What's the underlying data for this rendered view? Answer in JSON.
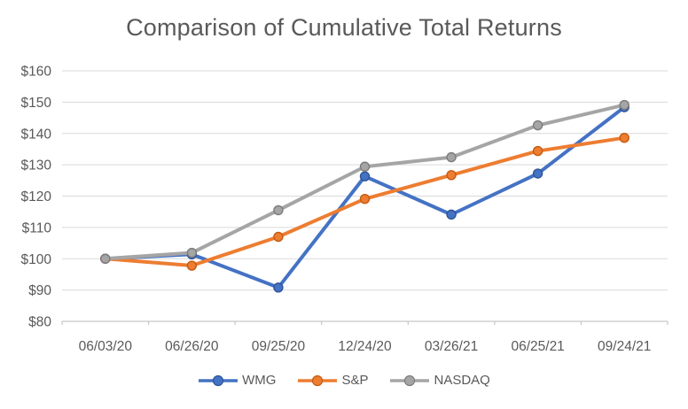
{
  "chart_data": {
    "type": "line",
    "title": "Comparison of Cumulative Total Returns",
    "categories": [
      "06/03/20",
      "06/26/20",
      "09/25/20",
      "12/24/20",
      "03/26/21",
      "06/25/21",
      "09/24/21"
    ],
    "series": [
      {
        "name": "WMG",
        "color": "#4472C4",
        "marker_border": "#2F5597",
        "values": [
          100,
          101.4,
          90.8,
          126.3,
          114.1,
          127.2,
          148.4
        ]
      },
      {
        "name": "S&P",
        "color": "#ED7D31",
        "marker_border": "#C55A11",
        "values": [
          100,
          97.8,
          107.0,
          119.1,
          126.7,
          134.4,
          138.6
        ]
      },
      {
        "name": "NASDAQ",
        "color": "#A5A5A5",
        "marker_border": "#7C7C7C",
        "values": [
          100,
          101.9,
          115.5,
          129.4,
          132.4,
          142.6,
          149.1
        ]
      }
    ],
    "y_axis": {
      "min": 80,
      "max": 160,
      "step": 10,
      "tick_prefix": "$",
      "tick_labels": [
        "$80",
        "$90",
        "$100",
        "$110",
        "$120",
        "$130",
        "$140",
        "$150",
        "$160"
      ]
    },
    "marker": "circle",
    "grid": true,
    "legend_position": "bottom",
    "colors": {
      "text": "#595959",
      "gridline": "#D9D9D9",
      "axis_line": "#C6C6C6",
      "background": "#FFFFFF"
    }
  }
}
